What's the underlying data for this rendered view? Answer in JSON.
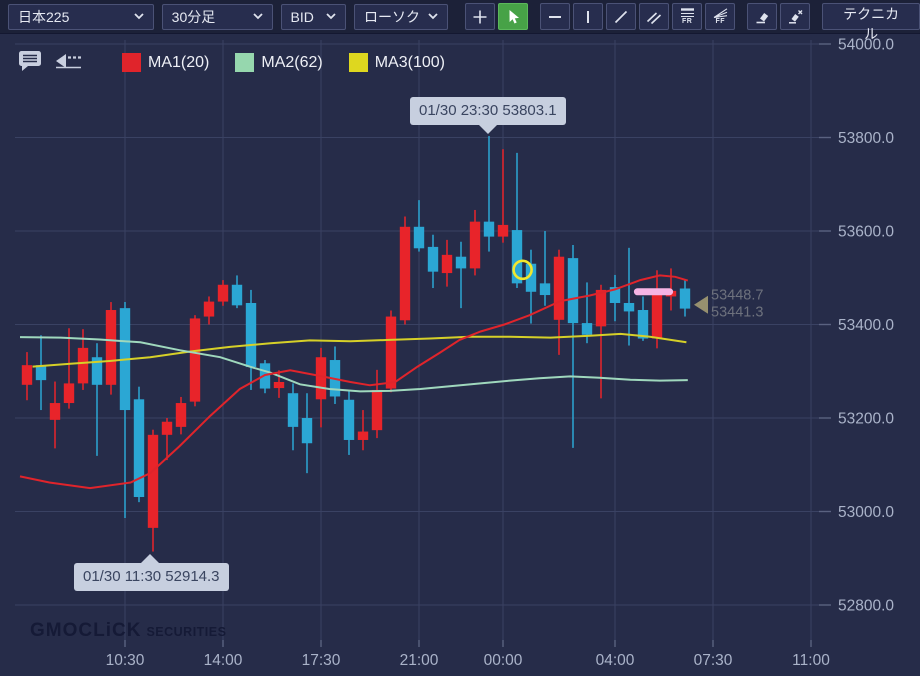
{
  "toolbar": {
    "instrument": "日本225",
    "timeframe": "30分足",
    "price_type": "BID",
    "chart_type": "ローソク",
    "technical_button": "テクニカル",
    "fr_label": "FR",
    "ff_label": "FF"
  },
  "legend": {
    "items": [
      {
        "label": "MA1(20)",
        "color": "#e0242b"
      },
      {
        "label": "MA2(62)",
        "color": "#96d7ae"
      },
      {
        "label": "MA3(100)",
        "color": "#ded71f"
      }
    ]
  },
  "annotations": {
    "high": "01/30 23:30 53803.1",
    "low": "01/30 11:30 52914.3"
  },
  "price_labels": {
    "upper": "53448.7",
    "lower": "53441.3",
    "arrow_price": 53448.7,
    "text_color": "#6d717d",
    "arrow_color": "#96906f"
  },
  "logo": {
    "brand": "GMOCLiCK",
    "suffix": "SECURITIES"
  },
  "chart_data": {
    "type": "candlestick",
    "title": "日本225 30分足 BID ローソク",
    "colors": {
      "up": "#e8242a",
      "down": "#2ba7d4",
      "ma1": "#e0242b",
      "ma2": "#9fd8bd",
      "ma3": "#d6d028",
      "grid": "#3a4263",
      "axis_text": "#aab3c9",
      "background": "#262c49"
    },
    "y_axis": {
      "top_value": 54000,
      "ticks": [
        {
          "value": 54000,
          "label": "54000.0"
        },
        {
          "value": 53800,
          "label": "53800.0"
        },
        {
          "value": 53600,
          "label": "53600.0"
        },
        {
          "value": 53400,
          "label": "53400.0"
        },
        {
          "value": 53200,
          "label": "53200.0"
        },
        {
          "value": 53000,
          "label": "53000.0"
        },
        {
          "value": 52800,
          "label": "52800.0"
        }
      ]
    },
    "x_axis": {
      "ticks": [
        {
          "index": 7,
          "label": "10:30"
        },
        {
          "index": 14,
          "label": "14:00"
        },
        {
          "index": 21,
          "label": "17:30"
        },
        {
          "index": 28,
          "label": "21:00"
        },
        {
          "index": 34,
          "label": "00:00"
        },
        {
          "index": 42,
          "label": "04:00"
        },
        {
          "index": 49,
          "label": "07:30"
        },
        {
          "index": 56,
          "label": "11:00"
        }
      ]
    },
    "columns": [
      "time",
      "open",
      "high",
      "low",
      "close"
    ],
    "candles": [
      [
        "07:00",
        53271,
        53341,
        53238,
        53313
      ],
      [
        "07:30",
        53313,
        53377,
        53217,
        53281
      ],
      [
        "08:00",
        53196,
        53278,
        53135,
        53232
      ],
      [
        "08:30",
        53232,
        53392,
        53220,
        53274
      ],
      [
        "09:00",
        53274,
        53390,
        53260,
        53350
      ],
      [
        "09:30",
        53330,
        53360,
        53119,
        53271
      ],
      [
        "10:00",
        53271,
        53448,
        53250,
        53431
      ],
      [
        "10:30",
        53435,
        53448,
        52986,
        53217
      ],
      [
        "11:00",
        53240,
        53267,
        53020,
        53031
      ],
      [
        "11:30",
        52965,
        53175,
        52914.3,
        53164
      ],
      [
        "12:00",
        53164,
        53200,
        53110,
        53192
      ],
      [
        "12:30",
        53181,
        53245,
        53165,
        53232
      ],
      [
        "13:00",
        53235,
        53420,
        53225,
        53413
      ],
      [
        "13:30",
        53417,
        53460,
        53400,
        53449
      ],
      [
        "14:00",
        53449,
        53495,
        53440,
        53485
      ],
      [
        "14:30",
        53485,
        53505,
        53435,
        53441
      ],
      [
        "15:00",
        53446,
        53474,
        53260,
        53309
      ],
      [
        "15:30",
        53317,
        53324,
        53253,
        53263
      ],
      [
        "16:00",
        53264,
        53302,
        53243,
        53277
      ],
      [
        "16:30",
        53253,
        53274,
        53131,
        53181
      ],
      [
        "17:00",
        53200,
        53253,
        53082,
        53146
      ],
      [
        "17:30",
        53240,
        53350,
        53180,
        53330
      ],
      [
        "18:00",
        53324,
        53353,
        53230,
        53246
      ],
      [
        "18:30",
        53239,
        53260,
        53121,
        53153
      ],
      [
        "19:00",
        53153,
        53217,
        53131,
        53171
      ],
      [
        "19:30",
        53174,
        53303,
        53157,
        53260
      ],
      [
        "20:00",
        53263,
        53430,
        53255,
        53417
      ],
      [
        "20:30",
        53409,
        53631,
        53400,
        53609
      ],
      [
        "21:00",
        53609,
        53666,
        53556,
        53563
      ],
      [
        "21:30",
        53566,
        53592,
        53478,
        53513
      ],
      [
        "22:00",
        53510,
        53581,
        53481,
        53549
      ],
      [
        "22:30",
        53545,
        53577,
        53435,
        53520
      ],
      [
        "23:00",
        53520,
        53645,
        53505,
        53620
      ],
      [
        "23:30",
        53620,
        53803.1,
        53556,
        53588
      ],
      [
        "00:00",
        53588,
        53775,
        53575,
        53613
      ],
      [
        "00:30",
        53602,
        53767,
        53478,
        53488
      ],
      [
        "01:00",
        53530,
        53560,
        53402,
        53470
      ],
      [
        "01:30",
        53488,
        53600,
        53440,
        53463
      ],
      [
        "02:00",
        53410,
        53560,
        53335,
        53545
      ],
      [
        "02:30",
        53542,
        53570,
        53136,
        53403
      ],
      [
        "03:00",
        53403,
        53490,
        53360,
        53378
      ],
      [
        "03:30",
        53396,
        53485,
        53242,
        53474
      ],
      [
        "04:00",
        53480,
        53506,
        53407,
        53446
      ],
      [
        "04:30",
        53446,
        53564,
        53355,
        53428
      ],
      [
        "05:00",
        53431,
        53460,
        53365,
        53370
      ],
      [
        "05:30",
        53370,
        53516,
        53349,
        53470
      ],
      [
        "06:00",
        53460,
        53520,
        53430,
        53472
      ],
      [
        "06:30",
        53477,
        53495,
        53417,
        53434
      ]
    ],
    "moving_averages": {
      "ma1_period_20": [
        [
          -0.5,
          53075
        ],
        [
          1.6,
          53062
        ],
        [
          4.5,
          53050
        ],
        [
          7.4,
          53062
        ],
        [
          8.8,
          53082
        ],
        [
          10.9,
          53140
        ],
        [
          13.1,
          53205
        ],
        [
          15.2,
          53262
        ],
        [
          17,
          53292
        ],
        [
          18.8,
          53302
        ],
        [
          20.9,
          53290
        ],
        [
          23.1,
          53277
        ],
        [
          24.5,
          53270
        ],
        [
          26.3,
          53277
        ],
        [
          27.9,
          53310
        ],
        [
          29.5,
          53340
        ],
        [
          30.9,
          53367
        ],
        [
          32.4,
          53385
        ],
        [
          34.1,
          53400
        ],
        [
          35.9,
          53420
        ],
        [
          38.1,
          53450
        ],
        [
          40.2,
          53462
        ],
        [
          42,
          53475
        ],
        [
          43.8,
          53495
        ],
        [
          45.2,
          53505
        ],
        [
          46.3,
          53502
        ],
        [
          47.2,
          53494
        ]
      ],
      "ma2_period_62": [
        [
          -0.5,
          53373
        ],
        [
          2.4,
          53372
        ],
        [
          5.2,
          53368
        ],
        [
          8.1,
          53362
        ],
        [
          10.9,
          53345
        ],
        [
          13.8,
          53330
        ],
        [
          15.9,
          53310
        ],
        [
          17.4,
          53297
        ],
        [
          19.5,
          53272
        ],
        [
          21.6,
          53262
        ],
        [
          23.8,
          53257
        ],
        [
          25.9,
          53258
        ],
        [
          28.1,
          53262
        ],
        [
          30.2,
          53268
        ],
        [
          32.4,
          53274
        ],
        [
          34.5,
          53280
        ],
        [
          36.6,
          53285
        ],
        [
          38.8,
          53289
        ],
        [
          40.9,
          53286
        ],
        [
          43.1,
          53282
        ],
        [
          45.2,
          53280
        ],
        [
          47.2,
          53281
        ]
      ],
      "ma3_period_100": [
        [
          0.4,
          53310
        ],
        [
          3.1,
          53316
        ],
        [
          5.9,
          53322
        ],
        [
          8.8,
          53330
        ],
        [
          11.6,
          53342
        ],
        [
          14.5,
          53352
        ],
        [
          17.4,
          53360
        ],
        [
          20.2,
          53366
        ],
        [
          23.1,
          53364
        ],
        [
          25.9,
          53367
        ],
        [
          28.8,
          53370
        ],
        [
          31.6,
          53374
        ],
        [
          34.5,
          53374
        ],
        [
          37.4,
          53372
        ],
        [
          40.2,
          53376
        ],
        [
          42.4,
          53380
        ],
        [
          44.5,
          53374
        ],
        [
          47.1,
          53362
        ]
      ]
    },
    "drawn_objects": {
      "ellipse_marker": {
        "index": 35.4,
        "price": 53517,
        "radius_px": 9,
        "color": "#f1e72e"
      },
      "pink_line_marker": {
        "from_index": 43.6,
        "to_index": 45.9,
        "price": 53470,
        "color": "#f6b4e4"
      }
    }
  }
}
